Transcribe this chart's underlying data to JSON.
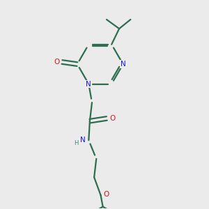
{
  "bg_color": "#ebebeb",
  "bond_color": "#2d6e4e",
  "n_color": "#1a1acc",
  "o_color": "#cc1a1a",
  "h_color": "#4a8080",
  "line_width": 1.6,
  "font_size": 7.5,
  "fig_w": 3.0,
  "fig_h": 3.0,
  "dpi": 100,
  "xlim": [
    0,
    10
  ],
  "ylim": [
    0,
    10
  ]
}
